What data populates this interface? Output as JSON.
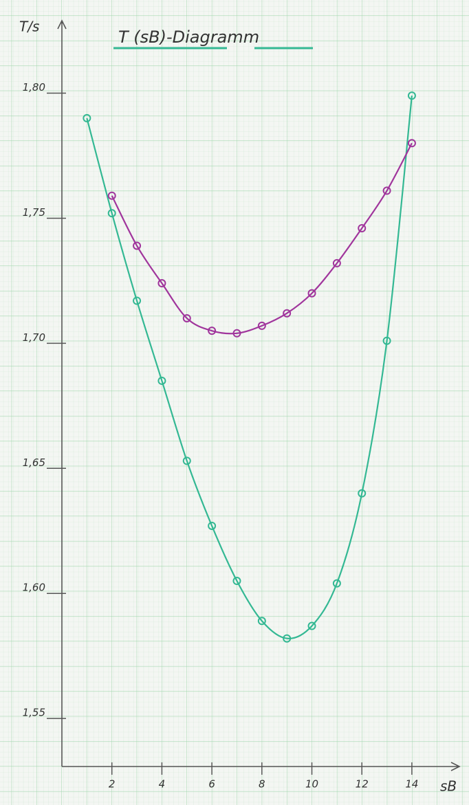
{
  "chart_data": {
    "type": "line",
    "title": "T (sB)-Diagramm",
    "x_label": "sB",
    "y_label": "T/s",
    "x": [
      1,
      2,
      3,
      4,
      5,
      6,
      7,
      8,
      9,
      10,
      11,
      12,
      13,
      14
    ],
    "series": [
      {
        "color": "#33b893",
        "values": [
          1.79,
          1.752,
          1.717,
          1.685,
          1.653,
          1.627,
          1.605,
          1.589,
          1.582,
          1.587,
          1.604,
          1.64,
          1.701,
          1.799
        ]
      },
      {
        "color": "#a0359c",
        "values": [
          null,
          1.759,
          1.739,
          1.724,
          1.71,
          1.705,
          1.704,
          1.707,
          1.712,
          1.72,
          1.732,
          1.746,
          1.761,
          1.78
        ]
      }
    ],
    "xlim": [
      0,
      15.9
    ],
    "xticks": [
      2,
      4,
      6,
      8,
      10,
      12,
      14
    ],
    "ylim": [
      1.5308,
      1.829
    ],
    "yticks": [
      {
        "value": 1.55,
        "label": "1,55"
      },
      {
        "value": 1.6,
        "label": "1,60"
      },
      {
        "value": 1.65,
        "label": "1,65"
      },
      {
        "value": 1.7,
        "label": "1,70"
      },
      {
        "value": 1.75,
        "label": "1,75"
      },
      {
        "value": 1.8,
        "label": "1,80"
      }
    ],
    "grid": true
  }
}
